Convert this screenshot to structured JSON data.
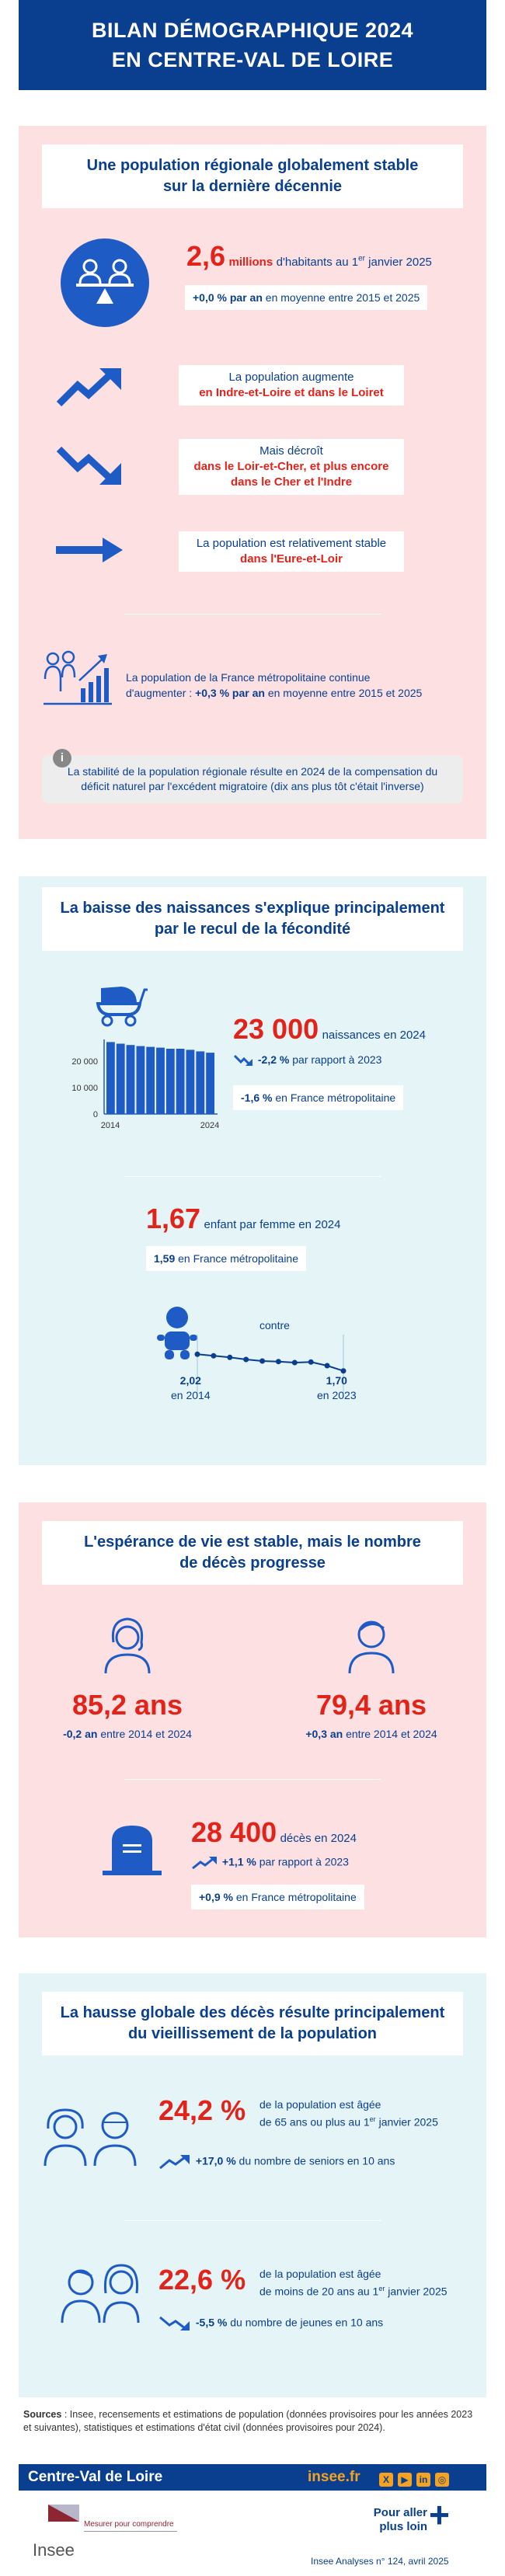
{
  "header": {
    "line1": "BILAN DÉMOGRAPHIQUE 2024",
    "line2": "EN CENTRE-VAL DE LOIRE"
  },
  "s1": {
    "title_line1": "Une population régionale globalement stable",
    "title_line2": "sur la dernière décennie",
    "pop_value": "2,6",
    "pop_unit": "millions",
    "pop_desc": "d'habitants au 1",
    "pop_sup": "er",
    "pop_desc2": " janvier 2025",
    "trend_value": "+0,0 % par an",
    "trend_desc": " en moyenne entre 2015 et 2025",
    "up_line1": "La population augmente",
    "up_line2": "en Indre-et-Loire et dans le Loiret",
    "down_line1": "Mais décroît",
    "down_line2": "dans le Loir-et-Cher, et plus encore",
    "down_line3": "dans le Cher et l'Indre",
    "stable_line1": "La population est relativement stable",
    "stable_line2": "dans l'Eure-et-Loir",
    "france_line1": "La population de la France métropolitaine continue",
    "france_line2a": "d'augmenter : ",
    "france_value": "+0,3 % par an",
    "france_line2b": " en moyenne entre 2015 et 2025",
    "info_icon": "i",
    "info_line1": "La stabilité de la population régionale résulte en 2024 de la compensation du",
    "info_line2": "déficit naturel par l'excédent migratoire (dix ans plus tôt c'était l'inverse)"
  },
  "s2": {
    "title_line1": "La baisse des naissances s'explique principalement",
    "title_line2": "par le recul de la fécondité",
    "births_value": "23 000",
    "births_desc": "naissances en 2024",
    "births_change": "-2,2 %",
    "births_change_desc": " par rapport à 2023",
    "births_france": "-1,6 %",
    "births_france_desc": " en France métropolitaine",
    "fert_value": "1,67",
    "fert_desc": "enfant par femme en 2024",
    "fert_france": "1,59",
    "fert_france_desc": " en France métropolitaine",
    "contre": "contre",
    "fert_2014_value": "2,02",
    "fert_2014_label": "en 2014",
    "fert_2023_value": "1,70",
    "fert_2023_label": "en 2023"
  },
  "chart_data": [
    {
      "type": "bar",
      "title": "",
      "x": [
        2014,
        2015,
        2016,
        2017,
        2018,
        2019,
        2020,
        2021,
        2022,
        2023,
        2024
      ],
      "values": [
        27000,
        26400,
        25900,
        25500,
        25200,
        24900,
        24500,
        24500,
        24100,
        23500,
        23000
      ],
      "tick_labels_x": [
        "2014",
        "2024"
      ],
      "tick_labels_y": [
        "0",
        "10 000",
        "20 000"
      ],
      "ylim": [
        0,
        28000
      ]
    },
    {
      "type": "line",
      "title": "",
      "x": [
        2014,
        2015,
        2016,
        2017,
        2018,
        2019,
        2020,
        2021,
        2022,
        2023
      ],
      "values": [
        2.02,
        1.99,
        1.96,
        1.92,
        1.89,
        1.88,
        1.86,
        1.87,
        1.8,
        1.7
      ],
      "ylim": [
        1.0,
        2.1
      ]
    }
  ],
  "s3": {
    "title_line1": "L'espérance de vie est stable, mais le nombre",
    "title_line2": "de décès progresse",
    "women_value": "85,2 ans",
    "women_change": "-0,2 an",
    "women_change_desc": " entre 2014 et 2024",
    "men_value": "79,4 ans",
    "men_change": "+0,3 an",
    "men_change_desc": " entre 2014 et 2024",
    "deaths_value": "28 400",
    "deaths_desc": "décès en 2024",
    "deaths_change": "+1,1 %",
    "deaths_change_desc": " par rapport à 2023",
    "deaths_france": "+0,9 %",
    "deaths_france_desc": " en France métropolitaine"
  },
  "s4": {
    "title_line1": "La hausse globale des décès résulte principalement",
    "title_line2": "du vieillissement de la population",
    "seniors_value": "24,2 %",
    "seniors_line1": "de la population est âgée",
    "seniors_line2a": "de 65 ans ou plus au 1",
    "seniors_sup": "er",
    "seniors_line2b": " janvier 2025",
    "seniors_change": "+17,0 %",
    "seniors_change_desc": " du nombre de seniors en 10 ans",
    "young_value": "22,6 %",
    "young_line1": "de la population est âgée",
    "young_line2a": "de moins de 20 ans au 1",
    "young_sup": "er",
    "young_line2b": " janvier 2025",
    "young_change": "-5,5 %",
    "young_change_desc": " du nombre de jeunes en 10 ans"
  },
  "sources": {
    "label": "Sources",
    "text": " : Insee, recensements et estimations de population (données provisoires pour les années 2023 et suivantes), statistiques et estimations d'état civil (données provisoires pour 2024)."
  },
  "footer": {
    "region": "Centre-Val de Loire",
    "site": "insee.fr",
    "social": [
      "X",
      "▶",
      "in",
      "◎"
    ],
    "logo_text": "Insee",
    "tagline": "Mesurer pour comprendre",
    "more_line1": "Pour aller",
    "more_line2": "plus loin",
    "plus": "+",
    "ref": "Insee Analyses n° 124, avril 2025"
  },
  "colors": {
    "blue": "#0a3f8f",
    "red": "#e2231a",
    "pink": "#fce0e2",
    "teal": "#e5f4f6"
  }
}
